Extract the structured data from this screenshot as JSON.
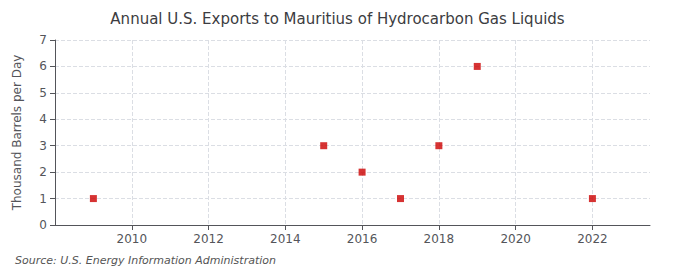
{
  "chart_data": {
    "type": "scatter",
    "title": "Annual U.S. Exports to Mauritius of Hydrocarbon Gas Liquids",
    "ylabel": "Thousand Barrels per Day",
    "source": "Source: U.S. Energy Information Administration",
    "x": [
      2009,
      2015,
      2016,
      2017,
      2018,
      2019,
      2022
    ],
    "values": [
      1,
      3,
      2,
      1,
      3,
      6,
      1
    ],
    "xlim": [
      2008.0,
      2023.5
    ],
    "xticks": [
      2010,
      2012,
      2014,
      2016,
      2018,
      2020,
      2022
    ],
    "ylim": [
      0,
      7
    ],
    "yticks": [
      0,
      1,
      2,
      3,
      4,
      5,
      6,
      7
    ],
    "color": "#cc0000",
    "marker": "square",
    "grid": true
  }
}
